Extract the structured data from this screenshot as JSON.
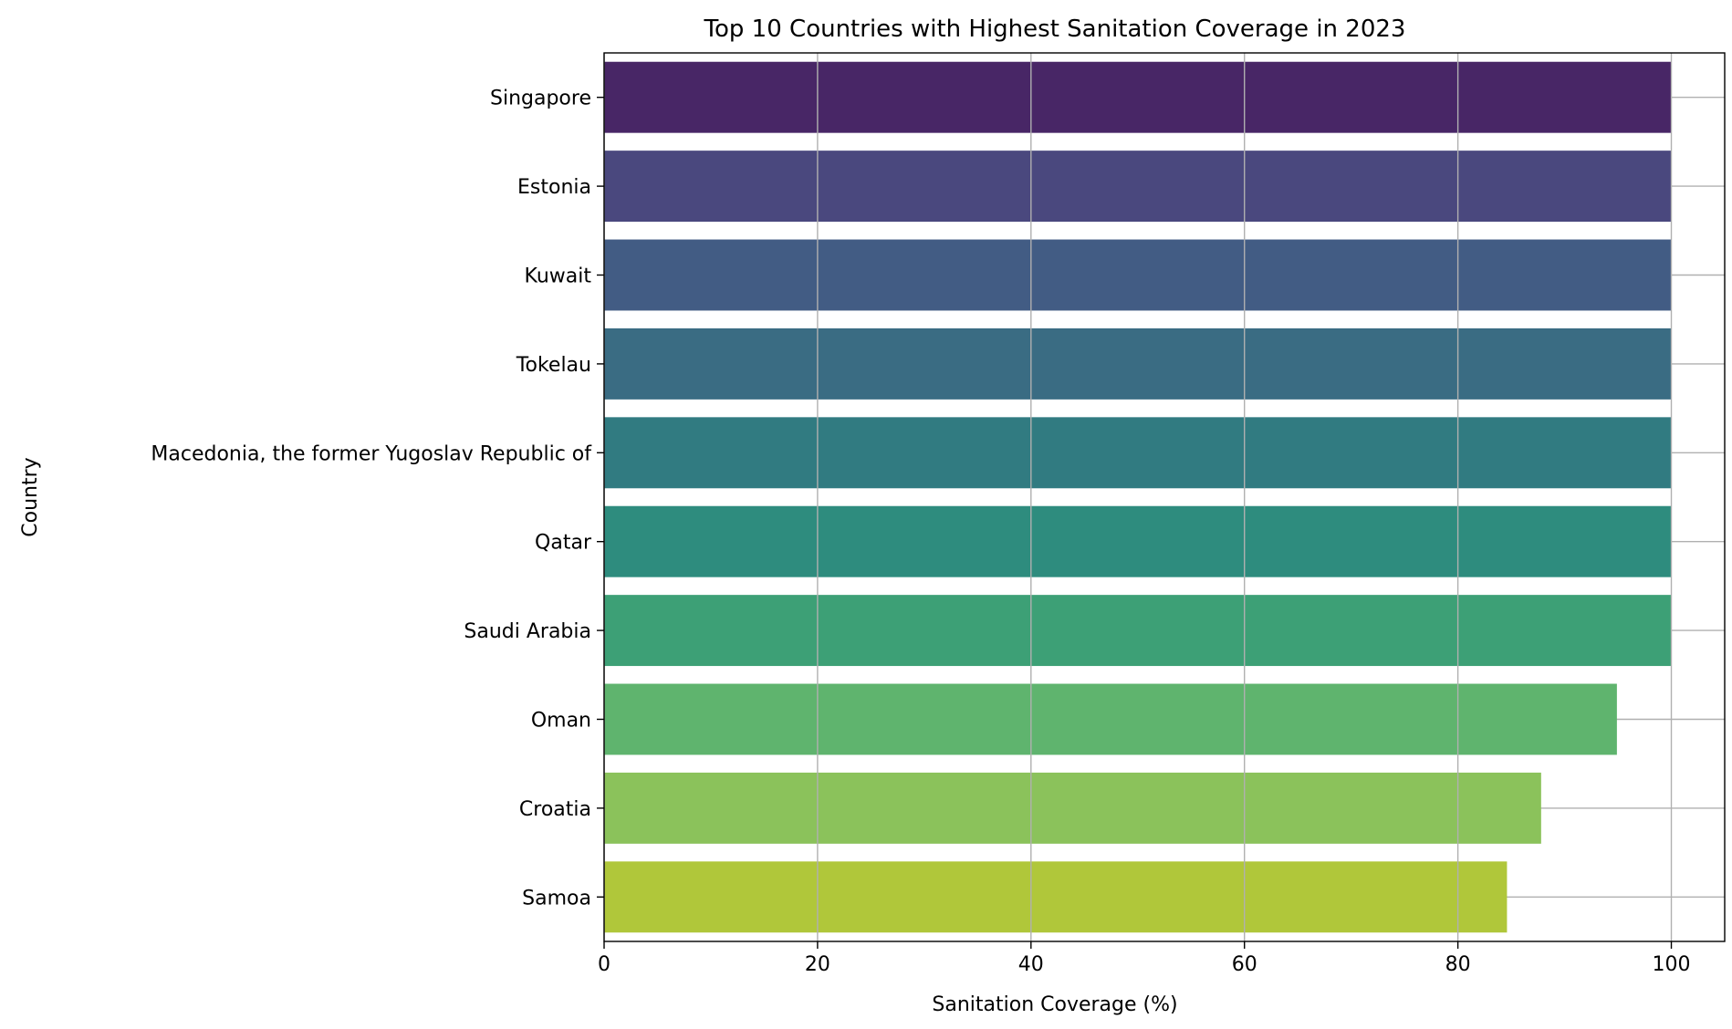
{
  "chart_data": {
    "type": "bar",
    "orientation": "horizontal",
    "title": "Top 10 Countries with Highest Sanitation Coverage in 2023",
    "xlabel": "Sanitation Coverage (%)",
    "ylabel": "Country",
    "xlim": [
      0,
      105
    ],
    "xticks": [
      0,
      20,
      40,
      60,
      80,
      100
    ],
    "grid": true,
    "categories": [
      "Singapore",
      "Estonia",
      "Kuwait",
      "Tokelau",
      "Macedonia, the former Yugoslav Republic of",
      "Qatar",
      "Saudi Arabia",
      "Oman",
      "Croatia",
      "Samoa"
    ],
    "values": [
      100,
      100,
      100,
      100,
      100,
      100,
      100,
      94.9,
      87.8,
      84.6
    ],
    "colors": [
      "#482666",
      "#4a487e",
      "#425c84",
      "#3a6c83",
      "#317b81",
      "#2e8c7e",
      "#3da076",
      "#5fb46e",
      "#8bc25b",
      "#b0c73a"
    ]
  }
}
